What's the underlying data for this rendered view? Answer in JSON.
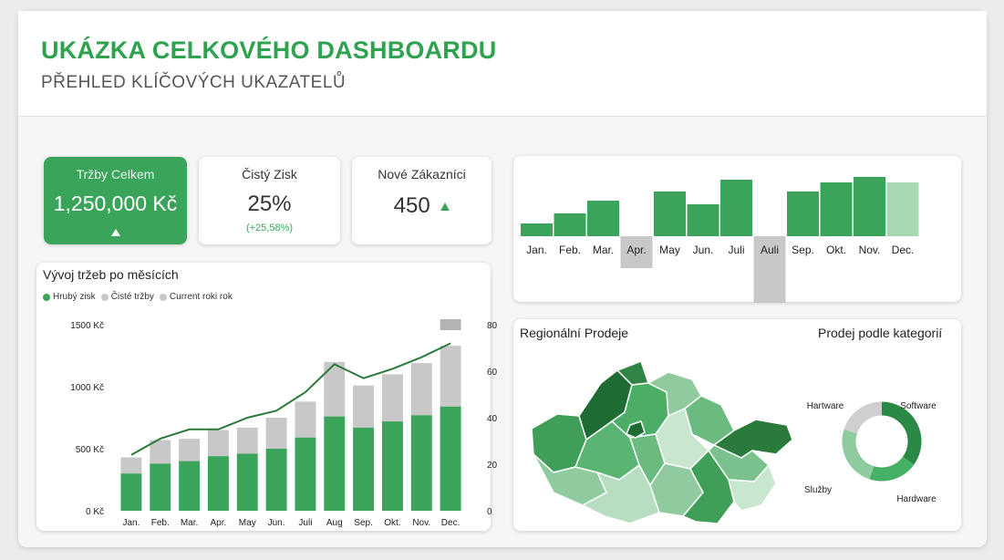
{
  "header": {
    "title": "UKÁZKA CELKOVÉHO DASHBOARDU",
    "subtitle": "PŘEHLED KLÍČOVÝCH UKAZATELŮ"
  },
  "colors": {
    "accent": "#2ea24f",
    "bar_green": "#3aa55a",
    "bar_gray": "#c8c8c8",
    "line": "#2a7a3c"
  },
  "kpis": [
    {
      "label": "Tržby Celkem",
      "value": "1,250,000 Kč"
    },
    {
      "label": "Čistý Zisk",
      "value": "25%",
      "sub": "(+25,58%)"
    },
    {
      "label": "Nové Zákazníci",
      "value": "450"
    }
  ],
  "chart_data": [
    {
      "type": "bar",
      "title": "",
      "categories": [
        "Jan.",
        "Feb.",
        "Mar.",
        "Apr.",
        "May",
        "Jun.",
        "Juli",
        "Auli",
        "Sep.",
        "Okt.",
        "Nov.",
        "Dec."
      ],
      "values": [
        14,
        25,
        39,
        -35,
        49,
        35,
        62,
        -73,
        49,
        59,
        65,
        59
      ],
      "ylim": [
        -80,
        70
      ],
      "highlight_last": true
    },
    {
      "type": "bar",
      "title": "Vývoj tržeb po měsících",
      "categories": [
        "Jan.",
        "Feb.",
        "Mar.",
        "Apr.",
        "May",
        "Jun.",
        "Juli",
        "Aug",
        "Sep.",
        "Okt.",
        "Nov.",
        "Dec."
      ],
      "series": [
        {
          "name": "Hrubý zisk",
          "values": [
            300,
            380,
            400,
            440,
            460,
            500,
            590,
            760,
            670,
            720,
            770,
            840
          ]
        },
        {
          "name": "Čisté tržby",
          "values": [
            430,
            570,
            580,
            650,
            670,
            750,
            880,
            1200,
            1010,
            1100,
            1190,
            1330
          ]
        },
        {
          "name": "Current roki rok",
          "axis": "right",
          "values": [
            24,
            31,
            35,
            35,
            40,
            43,
            51,
            63,
            57,
            61,
            66,
            72
          ]
        }
      ],
      "y_ticks": [
        "0 Kč",
        "500 Kč",
        "1000 Kč",
        "1500 Kč"
      ],
      "ylim": [
        0,
        1500
      ],
      "y2_ticks": [
        "0",
        "20",
        "40",
        "60",
        "80"
      ],
      "y2lim": [
        0,
        80
      ],
      "legend": "top-left"
    },
    {
      "type": "pie",
      "title": "Prodej podle kategorií",
      "labels": [
        "Software",
        "Hardware",
        "Služby",
        "Hartware"
      ],
      "values": [
        35,
        20,
        25,
        20
      ]
    }
  ],
  "map": {
    "title": "Regionální Prodeje",
    "regions": 14
  }
}
